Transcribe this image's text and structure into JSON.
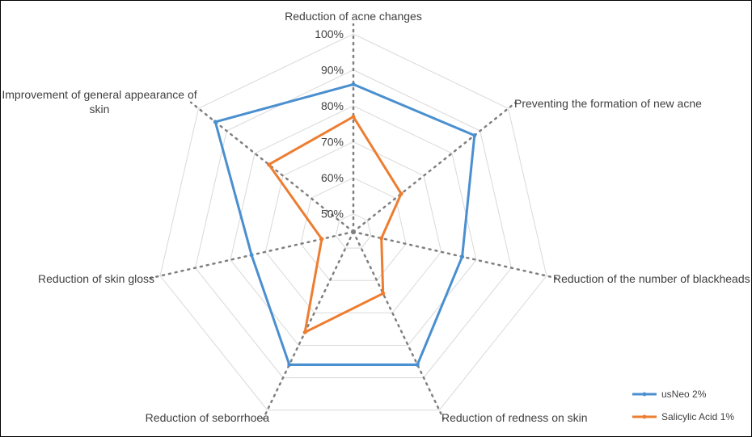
{
  "chart_data": {
    "type": "radar",
    "axes": [
      "Reduction of acne changes",
      "Preventing the formation of new acne",
      "Reduction of the number of blackheads",
      "Reduction of redness on skin",
      "Reduction of seborrhoea",
      "Reduction of skin gloss",
      "Improvement of general appearance of skin"
    ],
    "range": [
      45,
      100
    ],
    "ticks": [
      50,
      60,
      70,
      80,
      90,
      100
    ],
    "tick_labels": [
      "50%",
      "60%",
      "70%",
      "80%",
      "90%",
      "100%"
    ],
    "grid": true,
    "legend_position": "bottom-right",
    "series": [
      {
        "name": "usNeo 2%",
        "color": "#4a8fcf",
        "values": [
          86,
          88,
          76,
          86,
          86,
          74,
          94
        ]
      },
      {
        "name": "Salicylic Acid 1%",
        "color": "#ed7d31",
        "values": [
          77,
          62,
          53,
          64,
          76,
          54,
          75
        ]
      }
    ]
  }
}
